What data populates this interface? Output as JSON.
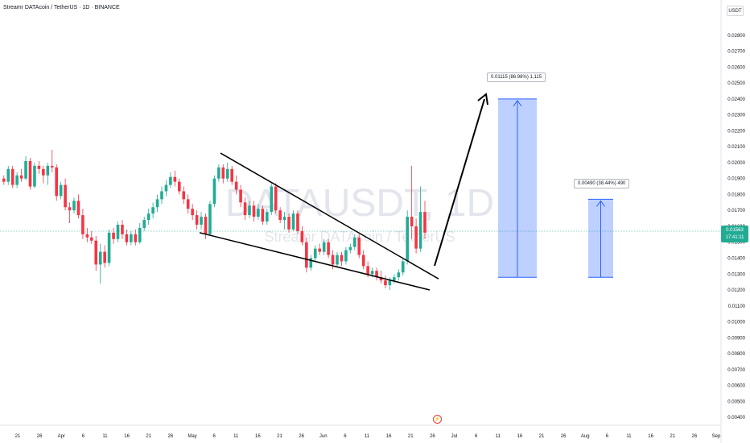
{
  "header": {
    "symbol_line": "Streamr DATAcoin / TetherUS · 1D · BINANCE",
    "currency": "USDT"
  },
  "watermark": {
    "ticker": "DATAUSDT, 1D",
    "name": "Streamr DATAcoin / TetherUS"
  },
  "last_price": {
    "value": "0.01563",
    "countdown": "17:41:11"
  },
  "colors": {
    "up": "#22ab94",
    "down": "#f23645",
    "target_zone": "#2962ff",
    "pattern_line": "#000000"
  },
  "annotations": {
    "target_1": "0.01115 (86.98%) 1,115",
    "target_2": "0.00490 (38.44%) 490"
  },
  "event_icon": "lightning-icon",
  "chart_data": {
    "type": "candlestick",
    "y_ticks": [
      "0.02800",
      "0.02700",
      "0.02600",
      "0.02500",
      "0.02400",
      "0.02300",
      "0.02200",
      "0.02100",
      "0.02000",
      "0.01900",
      "0.01800",
      "0.01700",
      "0.01600",
      "0.01500",
      "0.01400",
      "0.01300",
      "0.01200",
      "0.01100",
      "0.01000",
      "0.00900",
      "0.00800",
      "0.00700",
      "0.00600",
      "0.00500",
      "0.00400"
    ],
    "x_ticks": [
      "21",
      "26",
      "Apr",
      "6",
      "11",
      "16",
      "21",
      "26",
      "May",
      "6",
      "11",
      "16",
      "21",
      "26",
      "Jun",
      "6",
      "11",
      "16",
      "21",
      "26",
      "Jul",
      "6",
      "11",
      "16",
      "21",
      "26",
      "Aug",
      "6",
      "11",
      "16",
      "21",
      "26",
      "Sep"
    ],
    "ylim": [
      0.0035,
      0.0288
    ],
    "candles": [
      [
        0.019,
        0.0192,
        0.0186,
        0.0188
      ],
      [
        0.0188,
        0.0198,
        0.0186,
        0.0196
      ],
      [
        0.0196,
        0.0198,
        0.0184,
        0.0186
      ],
      [
        0.0186,
        0.0194,
        0.0184,
        0.0192
      ],
      [
        0.0192,
        0.0196,
        0.0188,
        0.019
      ],
      [
        0.019,
        0.0204,
        0.0189,
        0.0201
      ],
      [
        0.0201,
        0.0203,
        0.0183,
        0.0185
      ],
      [
        0.0185,
        0.02,
        0.0184,
        0.0198
      ],
      [
        0.0198,
        0.0201,
        0.0193,
        0.0196
      ],
      [
        0.0196,
        0.0198,
        0.0187,
        0.0192
      ],
      [
        0.0192,
        0.02,
        0.0186,
        0.0198
      ],
      [
        0.0198,
        0.0208,
        0.0194,
        0.0197
      ],
      [
        0.0197,
        0.0199,
        0.0176,
        0.0179
      ],
      [
        0.0179,
        0.0188,
        0.0177,
        0.0186
      ],
      [
        0.0186,
        0.019,
        0.017,
        0.0172
      ],
      [
        0.0172,
        0.0175,
        0.0162,
        0.017
      ],
      [
        0.017,
        0.0178,
        0.0168,
        0.0176
      ],
      [
        0.0176,
        0.018,
        0.0165,
        0.0167
      ],
      [
        0.0167,
        0.0171,
        0.0152,
        0.0155
      ],
      [
        0.0155,
        0.0159,
        0.015,
        0.0153
      ],
      [
        0.0153,
        0.0157,
        0.0149,
        0.0151
      ],
      [
        0.0151,
        0.0154,
        0.0132,
        0.0136
      ],
      [
        0.0136,
        0.0149,
        0.0124,
        0.0144
      ],
      [
        0.0144,
        0.0148,
        0.0134,
        0.0137
      ],
      [
        0.0137,
        0.0158,
        0.0135,
        0.0156
      ],
      [
        0.0156,
        0.0159,
        0.0149,
        0.0152
      ],
      [
        0.0152,
        0.0163,
        0.015,
        0.0161
      ],
      [
        0.0161,
        0.0164,
        0.0152,
        0.0155
      ],
      [
        0.0155,
        0.0158,
        0.0148,
        0.015
      ],
      [
        0.015,
        0.0157,
        0.0148,
        0.0155
      ],
      [
        0.0155,
        0.0158,
        0.0148,
        0.015
      ],
      [
        0.015,
        0.0162,
        0.0149,
        0.0159
      ],
      [
        0.0159,
        0.0166,
        0.0157,
        0.0164
      ],
      [
        0.0164,
        0.0171,
        0.0161,
        0.0168
      ],
      [
        0.0168,
        0.0175,
        0.0165,
        0.0172
      ],
      [
        0.0172,
        0.018,
        0.0169,
        0.0177
      ],
      [
        0.0177,
        0.0185,
        0.0174,
        0.0182
      ],
      [
        0.0182,
        0.0189,
        0.0179,
        0.0186
      ],
      [
        0.0186,
        0.0194,
        0.0184,
        0.0191
      ],
      [
        0.0191,
        0.0195,
        0.0185,
        0.0188
      ],
      [
        0.0188,
        0.019,
        0.018,
        0.0182
      ],
      [
        0.0182,
        0.0185,
        0.0174,
        0.0177
      ],
      [
        0.0177,
        0.018,
        0.0168,
        0.0171
      ],
      [
        0.0171,
        0.0174,
        0.0164,
        0.0167
      ],
      [
        0.0167,
        0.017,
        0.0158,
        0.0161
      ],
      [
        0.0161,
        0.0169,
        0.0158,
        0.0166
      ],
      [
        0.0166,
        0.0168,
        0.0152,
        0.0155
      ],
      [
        0.0155,
        0.0176,
        0.0154,
        0.0174
      ],
      [
        0.0174,
        0.0192,
        0.0172,
        0.019
      ],
      [
        0.019,
        0.0199,
        0.0188,
        0.0197
      ],
      [
        0.0197,
        0.0199,
        0.0187,
        0.019
      ],
      [
        0.019,
        0.02,
        0.0188,
        0.0196
      ],
      [
        0.0196,
        0.0198,
        0.0186,
        0.0188
      ],
      [
        0.0188,
        0.0192,
        0.018,
        0.0183
      ],
      [
        0.0183,
        0.0186,
        0.0172,
        0.0175
      ],
      [
        0.0175,
        0.0178,
        0.0164,
        0.0167
      ],
      [
        0.0167,
        0.0176,
        0.0165,
        0.0173
      ],
      [
        0.0173,
        0.0176,
        0.0163,
        0.0166
      ],
      [
        0.0166,
        0.0174,
        0.0164,
        0.0171
      ],
      [
        0.0171,
        0.0173,
        0.0161,
        0.0163
      ],
      [
        0.0163,
        0.0171,
        0.0161,
        0.0169
      ],
      [
        0.0169,
        0.0187,
        0.0167,
        0.0185
      ],
      [
        0.0185,
        0.0187,
        0.0168,
        0.017
      ],
      [
        0.017,
        0.0172,
        0.0162,
        0.0164
      ],
      [
        0.0164,
        0.0169,
        0.0158,
        0.0166
      ],
      [
        0.0166,
        0.0168,
        0.0156,
        0.0158
      ],
      [
        0.0158,
        0.017,
        0.0157,
        0.0168
      ],
      [
        0.0168,
        0.017,
        0.0155,
        0.0157
      ],
      [
        0.0157,
        0.016,
        0.0148,
        0.015
      ],
      [
        0.015,
        0.0153,
        0.0131,
        0.0134
      ],
      [
        0.0134,
        0.0142,
        0.0132,
        0.014
      ],
      [
        0.014,
        0.0148,
        0.0138,
        0.0146
      ],
      [
        0.0146,
        0.0149,
        0.0142,
        0.0144
      ],
      [
        0.0144,
        0.0152,
        0.0142,
        0.015
      ],
      [
        0.015,
        0.0152,
        0.014,
        0.0142
      ],
      [
        0.0142,
        0.0145,
        0.0133,
        0.0136
      ],
      [
        0.0136,
        0.0144,
        0.0134,
        0.0142
      ],
      [
        0.0142,
        0.0144,
        0.0135,
        0.0138
      ],
      [
        0.0138,
        0.0147,
        0.0136,
        0.0145
      ],
      [
        0.0145,
        0.0149,
        0.0143,
        0.0147
      ],
      [
        0.0147,
        0.0155,
        0.0145,
        0.0153
      ],
      [
        0.0153,
        0.0155,
        0.014,
        0.0142
      ],
      [
        0.0142,
        0.0145,
        0.0133,
        0.0135
      ],
      [
        0.0135,
        0.0138,
        0.0128,
        0.013
      ],
      [
        0.013,
        0.0134,
        0.0128,
        0.0132
      ],
      [
        0.0132,
        0.0134,
        0.0126,
        0.0128
      ],
      [
        0.0128,
        0.0132,
        0.0124,
        0.0126
      ],
      [
        0.0126,
        0.0129,
        0.0121,
        0.0123
      ],
      [
        0.0123,
        0.0128,
        0.012,
        0.0126
      ],
      [
        0.0126,
        0.013,
        0.0124,
        0.0128
      ],
      [
        0.0128,
        0.0133,
        0.0126,
        0.0131
      ],
      [
        0.0131,
        0.014,
        0.0129,
        0.0138
      ],
      [
        0.0138,
        0.017,
        0.0136,
        0.0166
      ],
      [
        0.0166,
        0.0198,
        0.0152,
        0.016
      ],
      [
        0.016,
        0.0165,
        0.0143,
        0.0146
      ],
      [
        0.0146,
        0.0185,
        0.0144,
        0.0169
      ],
      [
        0.0169,
        0.0176,
        0.0152,
        0.0156
      ]
    ],
    "pattern": {
      "upper_line": [
        [
          0.0187,
          0.019
        ],
        [
          0.0136,
          0.0132
        ]
      ],
      "lower_line": [
        [
          0.0155,
          0.0152
        ],
        [
          0.0129,
          0.012
        ]
      ]
    },
    "targets": [
      {
        "label": "0.01115 (86.98%) 1,115",
        "from": 0.0128,
        "to": 0.024
      },
      {
        "label": "0.00490 (38.44%) 490",
        "from": 0.0128,
        "to": 0.0177
      }
    ],
    "current_price": 0.01563,
    "grid": false,
    "legend": "none"
  }
}
